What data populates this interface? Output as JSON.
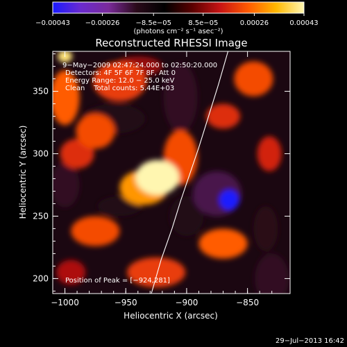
{
  "chart_data": {
    "type": "heatmap",
    "title": "Reconstructed RHESSI Image",
    "xlabel": "Heliocentric X (arcsec)",
    "ylabel": "Heliocentric Y (arcsec)",
    "xlim": [
      -1010,
      -815
    ],
    "ylim": [
      188,
      382
    ],
    "x_ticks": [
      -1000,
      -950,
      -900,
      -850
    ],
    "x_tick_labels": [
      "−1000",
      "−950",
      "−900",
      "−850"
    ],
    "y_ticks": [
      200,
      250,
      300,
      350
    ],
    "y_tick_labels": [
      "200",
      "250",
      "300",
      "350"
    ],
    "info_lines": [
      "9−May−2009 02:47:24.000 to 02:50:20.000",
      "Detectors: 4F 5F 6F 7F 8F, Att 0",
      "Energy Range: 12.0 − 25.0 keV",
      "Clean    Total counts: 5.44E+03"
    ],
    "peak_label": "Position of Peak = [−924,281]",
    "peak_position": [
      -924,
      281
    ],
    "colorbar": {
      "range": [
        -0.00043,
        0.00043
      ],
      "tick_values": [
        -0.00043,
        -0.00026,
        -8.5e-05,
        8.5e-05,
        0.00026,
        0.00043
      ],
      "tick_labels": [
        "−0.00043",
        "−0.00026",
        "−8.5e−05",
        "8.5e−05",
        "0.00026",
        "0.00043"
      ],
      "units_label": "(photons cm⁻² s⁻¹ asec⁻²)",
      "colors": [
        "#1a1aff",
        "#6a2acf",
        "#7a2a9a",
        "#2a0a1a",
        "#000000",
        "#5a0000",
        "#c81414",
        "#ff5a00",
        "#ffb800",
        "#fff6b0"
      ]
    },
    "blobs": [
      {
        "x": -924,
        "y": 281,
        "value": 0.00043,
        "rx": 18,
        "ry": 14
      },
      {
        "x": -935,
        "y": 273,
        "value": 0.0003,
        "rx": 20,
        "ry": 14
      },
      {
        "x": -905,
        "y": 297,
        "value": 0.00022,
        "rx": 14,
        "ry": 22
      },
      {
        "x": -975,
        "y": 318,
        "value": 0.00022,
        "rx": 16,
        "ry": 14
      },
      {
        "x": -990,
        "y": 300,
        "value": 0.00018,
        "rx": 14,
        "ry": 12
      },
      {
        "x": -1000,
        "y": 345,
        "value": 0.00024,
        "rx": 12,
        "ry": 22
      },
      {
        "x": -955,
        "y": 358,
        "value": 0.0002,
        "rx": 22,
        "ry": 16
      },
      {
        "x": -1000,
        "y": 378,
        "value": 0.0004,
        "rx": 6,
        "ry": 5
      },
      {
        "x": -845,
        "y": 360,
        "value": 0.00022,
        "rx": 16,
        "ry": 14
      },
      {
        "x": -870,
        "y": 330,
        "value": 0.00018,
        "rx": 14,
        "ry": 10
      },
      {
        "x": -832,
        "y": 300,
        "value": 0.00016,
        "rx": 10,
        "ry": 14
      },
      {
        "x": -975,
        "y": 238,
        "value": 0.00022,
        "rx": 20,
        "ry": 12
      },
      {
        "x": -870,
        "y": 228,
        "value": 0.00024,
        "rx": 20,
        "ry": 12
      },
      {
        "x": -925,
        "y": 205,
        "value": 0.0002,
        "rx": 24,
        "ry": 12
      },
      {
        "x": -995,
        "y": 205,
        "value": 0.00012,
        "rx": 12,
        "ry": 10
      },
      {
        "x": -940,
        "y": 370,
        "value": 0.0001,
        "rx": 20,
        "ry": 8
      },
      {
        "x": -900,
        "y": 250,
        "value": -0.00012,
        "rx": 14,
        "ry": 16
      },
      {
        "x": -865,
        "y": 263,
        "value": -0.00043,
        "rx": 8,
        "ry": 8
      },
      {
        "x": -875,
        "y": 268,
        "value": -0.00018,
        "rx": 20,
        "ry": 18
      },
      {
        "x": -905,
        "y": 345,
        "value": -0.00015,
        "rx": 14,
        "ry": 28
      },
      {
        "x": -960,
        "y": 328,
        "value": -0.00012,
        "rx": 26,
        "ry": 12
      },
      {
        "x": -830,
        "y": 200,
        "value": -0.00015,
        "rx": 14,
        "ry": 20
      },
      {
        "x": -1000,
        "y": 275,
        "value": -0.00015,
        "rx": 12,
        "ry": 18
      },
      {
        "x": -955,
        "y": 258,
        "value": -0.00012,
        "rx": 18,
        "ry": 8
      },
      {
        "x": -835,
        "y": 240,
        "value": -0.00014,
        "rx": 10,
        "ry": 18
      }
    ],
    "limb_curve": [
      [
        -929,
        188
      ],
      [
        -921,
        215
      ],
      [
        -912,
        240
      ],
      [
        -905,
        262
      ],
      [
        -897,
        285
      ],
      [
        -890,
        305
      ],
      [
        -882,
        330
      ],
      [
        -874,
        355
      ],
      [
        -866,
        382
      ]
    ]
  },
  "footer": {
    "timestamp": "29−Jul−2013 16:42"
  }
}
